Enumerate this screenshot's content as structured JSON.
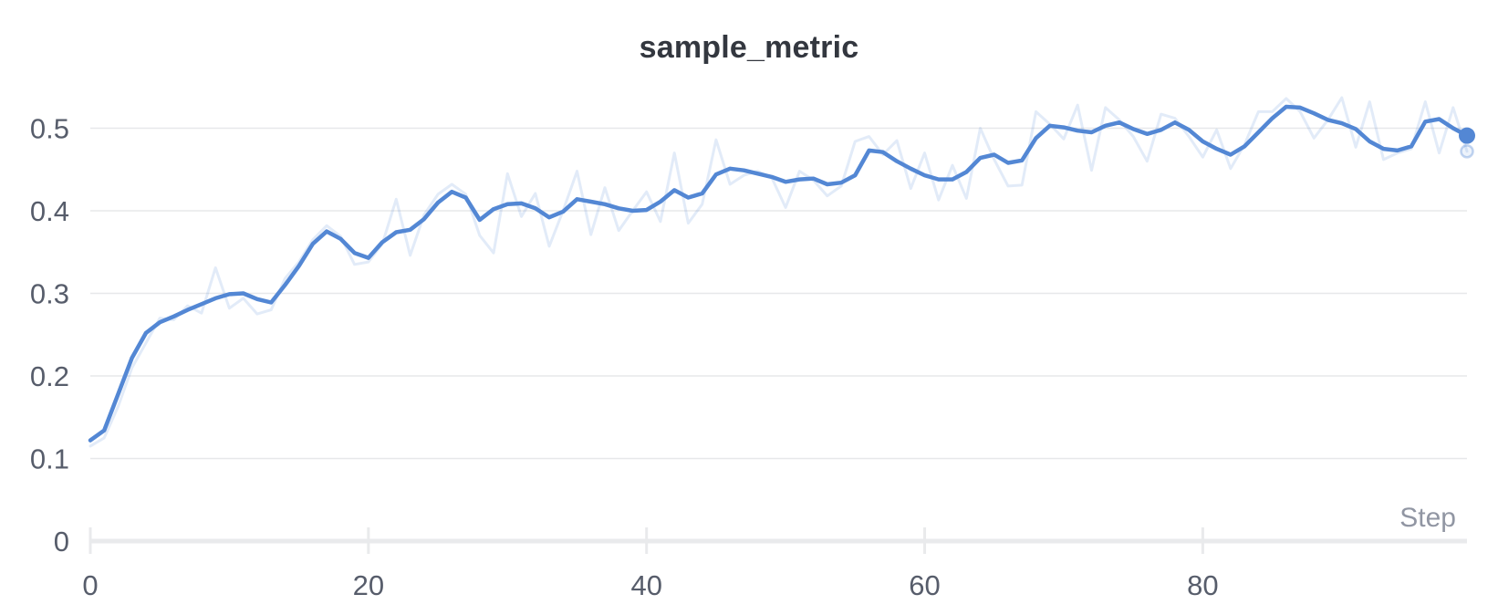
{
  "chart_data": {
    "type": "line",
    "title": "sample_metric",
    "xlabel": "Step",
    "ylabel": "",
    "legend": "none",
    "grid": "horizontal",
    "xlim": [
      0,
      99
    ],
    "ylim": [
      0,
      0.55
    ],
    "x_tick_values": [
      0,
      20,
      40,
      60,
      80
    ],
    "x_tick_labels": [
      "0",
      "20",
      "40",
      "60",
      "80"
    ],
    "y_tick_values": [
      0,
      0.1,
      0.2,
      0.3,
      0.4,
      0.5
    ],
    "y_tick_labels": [
      "0",
      "0.1",
      "0.2",
      "0.3",
      "0.4",
      "0.5"
    ],
    "colors": {
      "accent_blue": "#5387d4",
      "raw_line": "rgba(83,135,212,0.17)",
      "gridline": "#e7e8ea",
      "axis_baseline": "#e9eaec",
      "tick_label": "#575d6b",
      "step_label": "#9196a3",
      "title": "#33373f"
    },
    "series": [
      {
        "name": "raw",
        "role": "original-data",
        "values": [
          0.115,
          0.125,
          0.163,
          0.21,
          0.24,
          0.27,
          0.268,
          0.285,
          0.276,
          0.331,
          0.282,
          0.294,
          0.275,
          0.28,
          0.318,
          0.338,
          0.365,
          0.382,
          0.369,
          0.335,
          0.338,
          0.36,
          0.414,
          0.346,
          0.395,
          0.42,
          0.432,
          0.42,
          0.37,
          0.349,
          0.445,
          0.393,
          0.421,
          0.357,
          0.4,
          0.448,
          0.371,
          0.428,
          0.376,
          0.4,
          0.423,
          0.387,
          0.47,
          0.385,
          0.408,
          0.486,
          0.432,
          0.443,
          0.448,
          0.44,
          0.404,
          0.448,
          0.437,
          0.418,
          0.43,
          0.484,
          0.49,
          0.468,
          0.485,
          0.427,
          0.47,
          0.413,
          0.455,
          0.415,
          0.5,
          0.462,
          0.43,
          0.431,
          0.52,
          0.505,
          0.487,
          0.528,
          0.449,
          0.525,
          0.51,
          0.49,
          0.46,
          0.517,
          0.512,
          0.49,
          0.465,
          0.498,
          0.451,
          0.48,
          0.52,
          0.52,
          0.536,
          0.52,
          0.488,
          0.51,
          0.537,
          0.477,
          0.532,
          0.462,
          0.47,
          0.475,
          0.532,
          0.47,
          0.525,
          0.472
        ]
      },
      {
        "name": "smoothed",
        "role": "smoothed-data",
        "values": [
          0.122,
          0.134,
          0.178,
          0.222,
          0.252,
          0.265,
          0.272,
          0.28,
          0.287,
          0.294,
          0.299,
          0.3,
          0.293,
          0.289,
          0.31,
          0.333,
          0.36,
          0.375,
          0.366,
          0.349,
          0.343,
          0.362,
          0.374,
          0.377,
          0.39,
          0.41,
          0.423,
          0.416,
          0.389,
          0.402,
          0.408,
          0.409,
          0.403,
          0.392,
          0.399,
          0.414,
          0.411,
          0.408,
          0.403,
          0.4,
          0.401,
          0.411,
          0.425,
          0.416,
          0.421,
          0.444,
          0.451,
          0.449,
          0.445,
          0.441,
          0.435,
          0.438,
          0.439,
          0.432,
          0.434,
          0.443,
          0.473,
          0.471,
          0.46,
          0.451,
          0.443,
          0.438,
          0.438,
          0.447,
          0.464,
          0.468,
          0.458,
          0.461,
          0.488,
          0.503,
          0.501,
          0.497,
          0.495,
          0.503,
          0.507,
          0.499,
          0.493,
          0.498,
          0.507,
          0.498,
          0.484,
          0.475,
          0.468,
          0.478,
          0.495,
          0.512,
          0.526,
          0.525,
          0.518,
          0.51,
          0.506,
          0.499,
          0.484,
          0.475,
          0.473,
          0.478,
          0.508,
          0.511,
          0.5,
          0.491
        ]
      }
    ],
    "last_point": {
      "smoothed": 0.491,
      "raw": 0.472,
      "step": 99
    }
  }
}
